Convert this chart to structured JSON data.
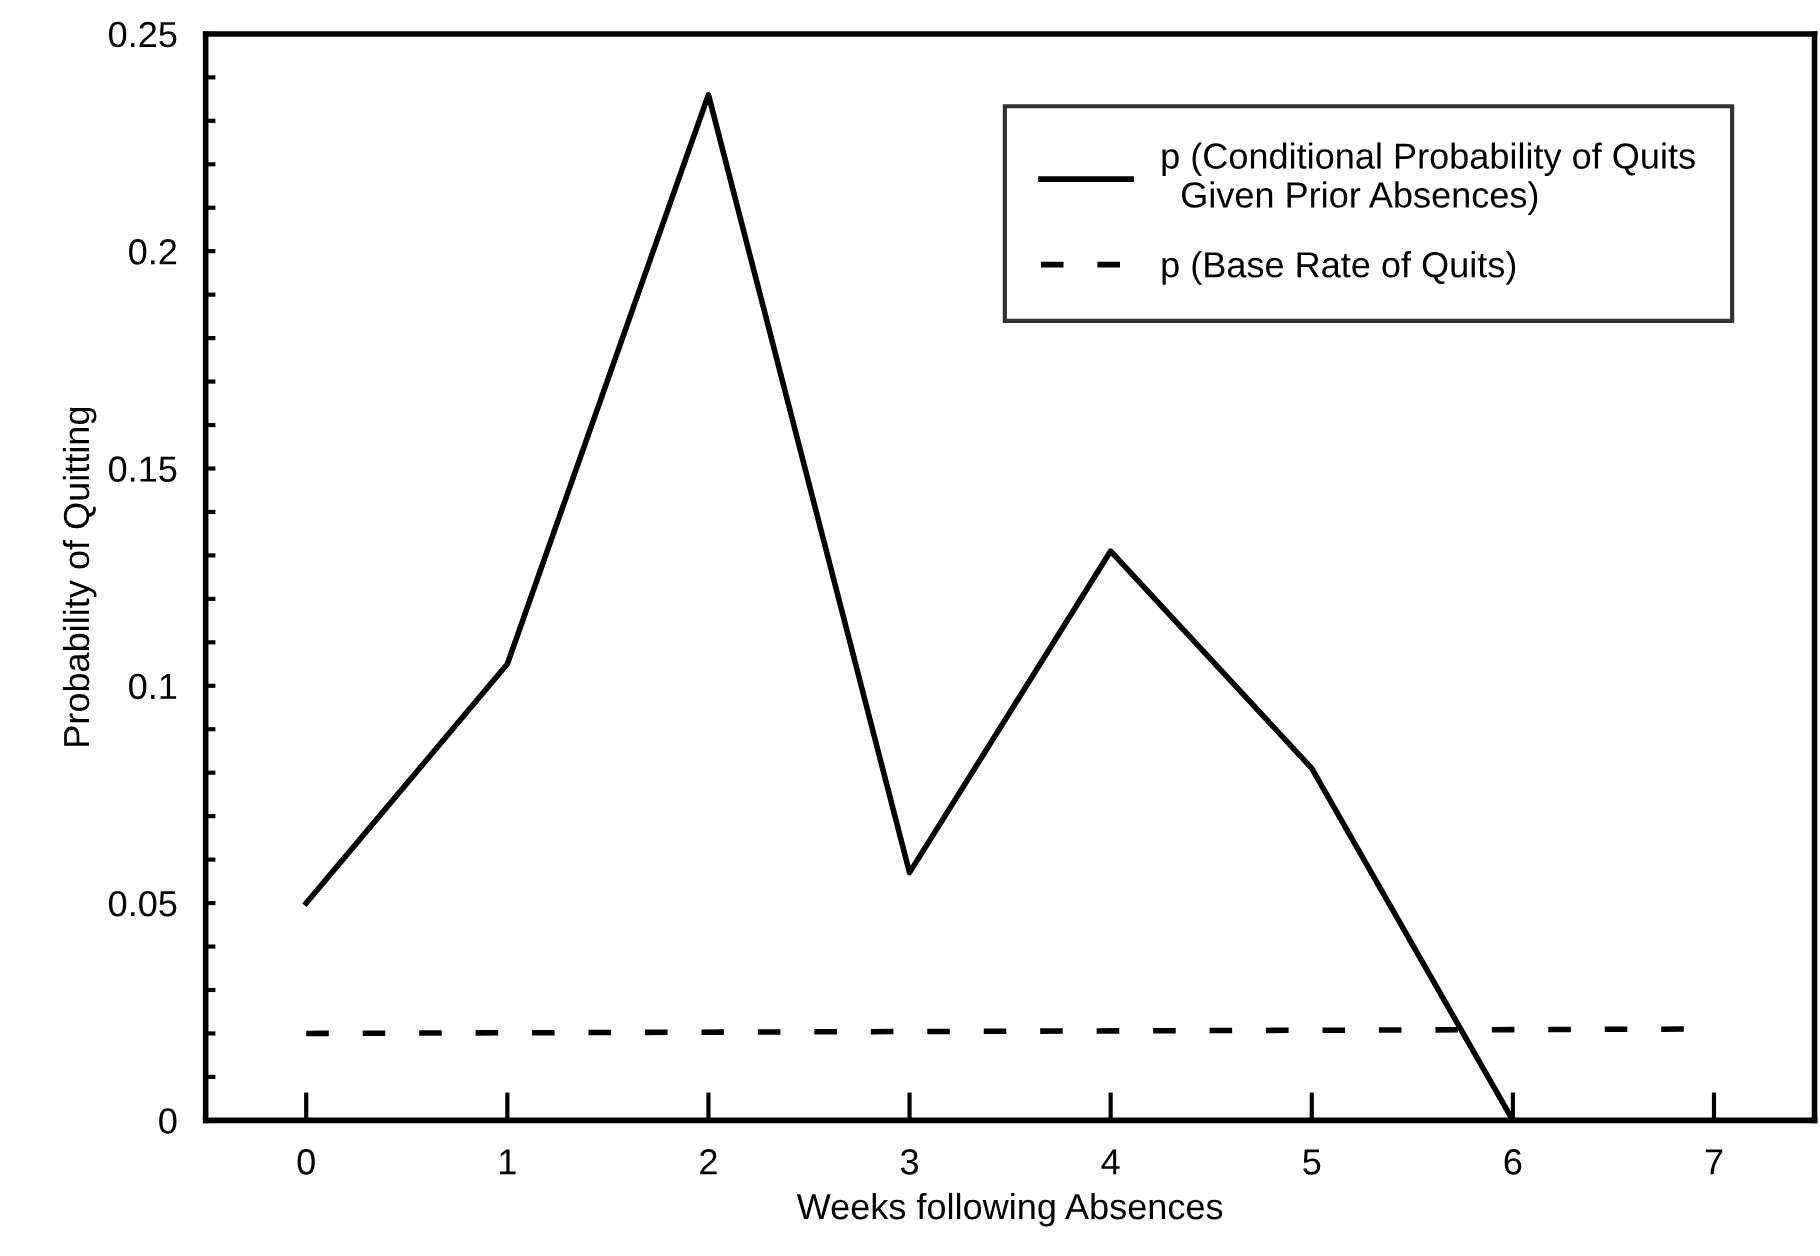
{
  "chart_data": {
    "type": "line",
    "xlabel": "Weeks following Absences",
    "ylabel": "Probability of Quitting",
    "xlim": [
      -0.5,
      7.5
    ],
    "xticks": [
      0,
      1,
      2,
      3,
      4,
      5,
      6,
      7
    ],
    "ylim": [
      0,
      0.25
    ],
    "yticks": [
      0,
      {
        "value": 0.01,
        "label": null
      },
      {
        "value": 0.02,
        "label": null
      },
      {
        "value": 0.03,
        "label": null
      },
      {
        "value": 0.04,
        "label": null
      },
      0.05,
      {
        "value": 0.06,
        "label": null
      },
      {
        "value": 0.07,
        "label": null
      },
      {
        "value": 0.08,
        "label": null
      },
      {
        "value": 0.09,
        "label": null
      },
      0.1,
      {
        "value": 0.11,
        "label": null
      },
      {
        "value": 0.12,
        "label": null
      },
      {
        "value": 0.13,
        "label": null
      },
      {
        "value": 0.14,
        "label": null
      },
      0.15,
      {
        "value": 0.16,
        "label": null
      },
      {
        "value": 0.17,
        "label": null
      },
      {
        "value": 0.18,
        "label": null
      },
      {
        "value": 0.19,
        "label": null
      },
      0.2,
      {
        "value": 0.21,
        "label": null
      },
      {
        "value": 0.22,
        "label": null
      },
      {
        "value": 0.23,
        "label": null
      },
      {
        "value": 0.24,
        "label": null
      },
      0.25
    ],
    "legend": "top right",
    "grid": false,
    "marker": "none",
    "series": [
      {
        "name": "p (Conditional Probability of Quits\n  Given Prior Absences)",
        "color": "#000000",
        "line_style": "solid",
        "x": [
          0,
          1,
          2,
          3,
          4,
          5,
          6
        ],
        "values": [
          0.05,
          0.105,
          0.236,
          0.057,
          0.131,
          0.081,
          0
        ]
      },
      {
        "name": "p (Base Rate of Quits)",
        "color": "#000000",
        "line_style": "dashed",
        "x": [
          0,
          6.85
        ],
        "values": [
          0.02,
          0.021
        ]
      }
    ]
  }
}
